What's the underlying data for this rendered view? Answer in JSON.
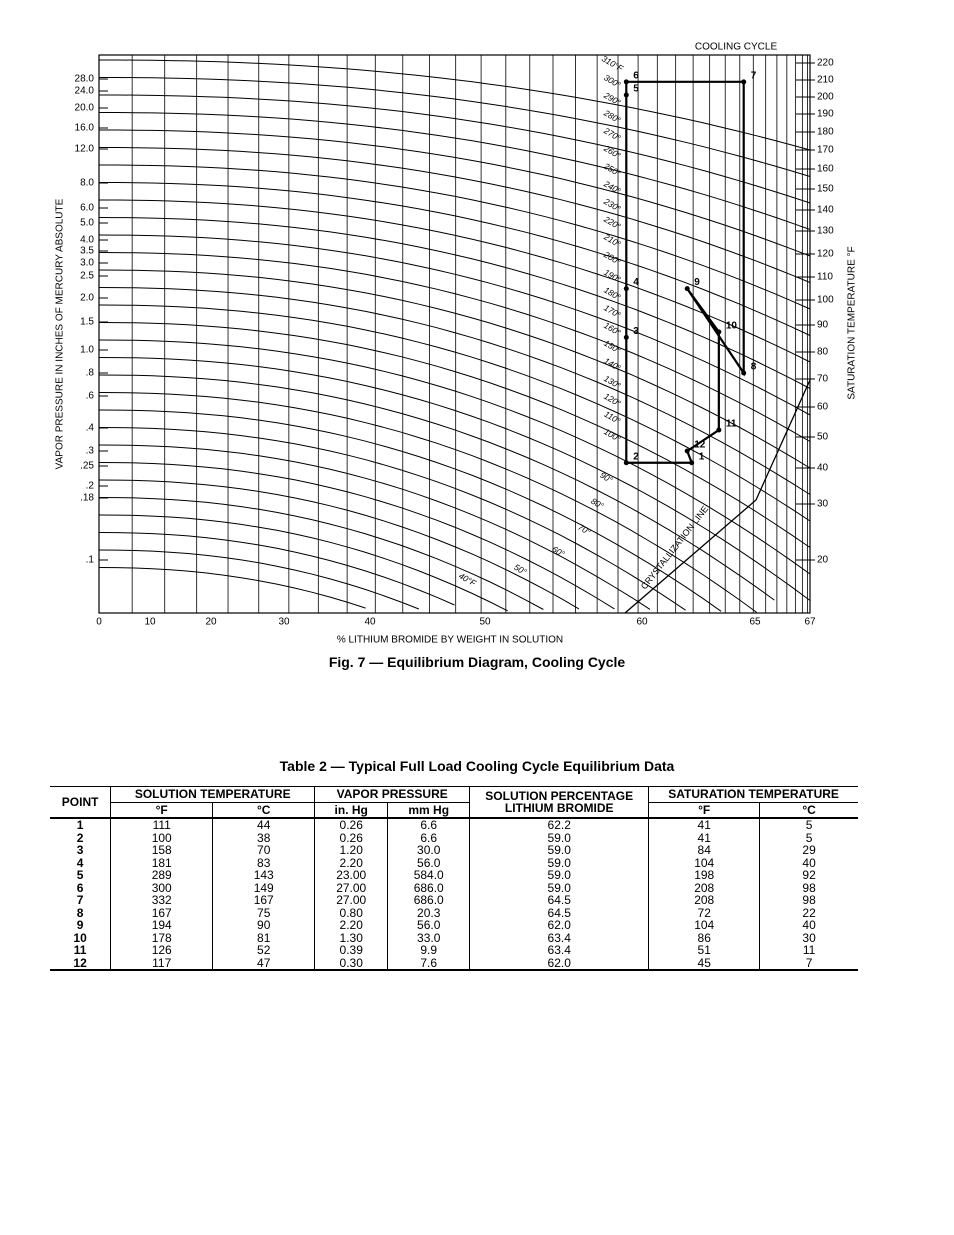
{
  "figure": {
    "corner_title": "COOLING CYCLE",
    "y_axis_label": "VAPOR PRESSURE IN INCHES OF MERCURY ABSOLUTE",
    "y_ticks": [
      "28.0",
      "24.0",
      "20.0",
      "16.0",
      "12.0",
      "8.0",
      "6.0",
      "5.0",
      "4.0",
      "3.5",
      "3.0",
      "2.5",
      "2.0",
      "1.5",
      "1.0",
      ".8",
      ".6",
      ".4",
      ".3",
      ".25",
      ".2",
      ".18",
      ".1"
    ],
    "x_axis_label": "% LITHIUM BROMIDE BY WEIGHT IN SOLUTION",
    "x_ticks": [
      "0",
      "10",
      "20",
      "30",
      "40",
      "50",
      "60",
      "65",
      "67"
    ],
    "y2_axis_label": "SATURATION TEMPERATURE °F",
    "y2_ticks": [
      "220",
      "210",
      "200",
      "190",
      "180",
      "170",
      "160",
      "150",
      "140",
      "130",
      "120",
      "110",
      "100",
      "90",
      "80",
      "70",
      "60",
      "50",
      "40",
      "30",
      "20"
    ],
    "isotherm_labels": [
      "310°F",
      "300°",
      "290°",
      "280°",
      "270°",
      "260°",
      "250°",
      "240°",
      "230°",
      "220°",
      "210°",
      "200°",
      "190°",
      "180°",
      "170°",
      "160°",
      "150°",
      "140°",
      "130°",
      "120°",
      "110°",
      "100°",
      "90°",
      "80°",
      "70°",
      "60°",
      "50°",
      "40°F"
    ],
    "crystallization_label": "CRYSTALLIZATION LINE",
    "caption": "Fig. 7 — Equilibrium Diagram, Cooling Cycle"
  },
  "table": {
    "title": "Table 2 — Typical Full Load Cooling Cycle Equilibrium Data",
    "headers": {
      "point": "POINT",
      "solution_temperature": "SOLUTION TEMPERATURE",
      "sol_f": "°F",
      "sol_c": "°C",
      "vapor_pressure": "VAPOR PRESSURE",
      "in_hg": "in. Hg",
      "mm_hg": "mm Hg",
      "percentage": "SOLUTION PERCENTAGE LITHIUM BROMIDE",
      "saturation_temperature": "SATURATION TEMPERATURE",
      "sat_f": "°F",
      "sat_c": "°C"
    },
    "rows": [
      [
        "1",
        "111",
        "44",
        "0.26",
        "6.6",
        "62.2",
        "41",
        "5"
      ],
      [
        "2",
        "100",
        "38",
        "0.26",
        "6.6",
        "59.0",
        "41",
        "5"
      ],
      [
        "3",
        "158",
        "70",
        "1.20",
        "30.0",
        "59.0",
        "84",
        "29"
      ],
      [
        "4",
        "181",
        "83",
        "2.20",
        "56.0",
        "59.0",
        "104",
        "40"
      ],
      [
        "5",
        "289",
        "143",
        "23.00",
        "584.0",
        "59.0",
        "198",
        "92"
      ],
      [
        "6",
        "300",
        "149",
        "27.00",
        "686.0",
        "59.0",
        "208",
        "98"
      ],
      [
        "7",
        "332",
        "167",
        "27.00",
        "686.0",
        "64.5",
        "208",
        "98"
      ],
      [
        "8",
        "167",
        "75",
        "0.80",
        "20.3",
        "64.5",
        "72",
        "22"
      ],
      [
        "9",
        "194",
        "90",
        "2.20",
        "56.0",
        "62.0",
        "104",
        "40"
      ],
      [
        "10",
        "178",
        "81",
        "1.30",
        "33.0",
        "63.4",
        "86",
        "30"
      ],
      [
        "11",
        "126",
        "52",
        "0.39",
        "9.9",
        "63.4",
        "51",
        "11"
      ],
      [
        "12",
        "117",
        "47",
        "0.30",
        "7.6",
        "62.0",
        "45",
        "7"
      ]
    ]
  }
}
